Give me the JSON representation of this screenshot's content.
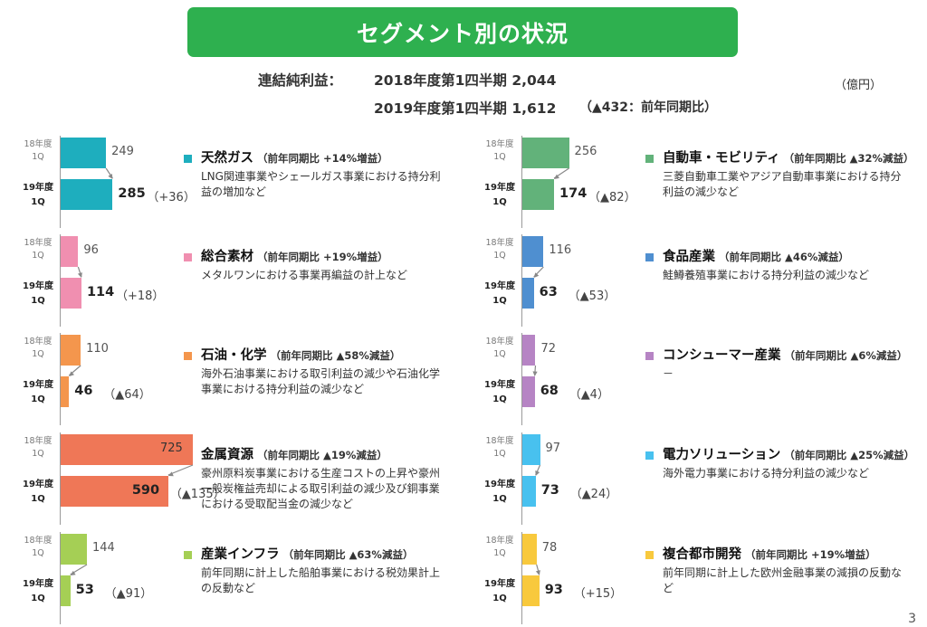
{
  "header": {
    "title": "セグメント別の状況"
  },
  "summary": {
    "label": "連結純利益：",
    "line1": "2018年度第1四半期 2,044",
    "line2": "2019年度第1四半期 1,612",
    "line2_note": "（▲432：前年同期比）",
    "unit": "（億円）"
  },
  "page_number": "3",
  "chart_data": [
    {
      "type": "bar",
      "color": "#1eaebe",
      "name": "天然ガス",
      "yoy": "（前年同期比 +14%増益）",
      "desc": "LNG関連事業やシェールガス事業における持分利益の増加など",
      "categories": [
        "18年度 1Q",
        "19年度 1Q"
      ],
      "values": [
        249,
        285
      ],
      "prev_label": "249",
      "curr_label": "285",
      "change": "（+36）"
    },
    {
      "type": "bar",
      "color": "#f08fb0",
      "name": "総合素材",
      "yoy": "（前年同期比 +19%増益）",
      "desc": "メタルワンにおける事業再編益の計上など",
      "categories": [
        "18年度 1Q",
        "19年度 1Q"
      ],
      "values": [
        96,
        114
      ],
      "prev_label": "96",
      "curr_label": "114",
      "change": "（+18）"
    },
    {
      "type": "bar",
      "color": "#f4964d",
      "name": "石油・化学",
      "yoy": "（前年同期比 ▲58%減益）",
      "desc": "海外石油事業における取引利益の減少や石油化学事業における持分利益の減少など",
      "categories": [
        "18年度 1Q",
        "19年度 1Q"
      ],
      "values": [
        110,
        46
      ],
      "prev_label": "110",
      "curr_label": "46",
      "change": "（▲64）"
    },
    {
      "type": "bar",
      "color": "#ef7757",
      "name": "金属資源",
      "yoy": "（前年同期比 ▲19%減益）",
      "desc": "豪州原料炭事業における生産コストの上昇や豪州一般炭権益売却による取引利益の減少及び銅事業における受取配当金の減少など",
      "categories": [
        "18年度 1Q",
        "19年度 1Q"
      ],
      "values": [
        725,
        590
      ],
      "prev_label": "725",
      "curr_label": "590",
      "change": "（▲135）",
      "prev_inside": true,
      "curr_inside": true
    },
    {
      "type": "bar",
      "color": "#a5cf55",
      "name": "産業インフラ",
      "yoy": "（前年同期比 ▲63%減益）",
      "desc": "前年同期に計上した船舶事業における税効果計上の反動など",
      "categories": [
        "18年度 1Q",
        "19年度 1Q"
      ],
      "values": [
        144,
        53
      ],
      "prev_label": "144",
      "curr_label": "53",
      "change": "（▲91）"
    },
    {
      "type": "bar",
      "color": "#62b27a",
      "name": "自動車・モビリティ",
      "yoy": "（前年同期比 ▲32%減益）",
      "desc": "三菱自動車工業やアジア自動車事業における持分利益の減少など",
      "categories": [
        "18年度 1Q",
        "19年度 1Q"
      ],
      "values": [
        256,
        174
      ],
      "prev_label": "256",
      "curr_label": "174",
      "change": "（▲82）"
    },
    {
      "type": "bar",
      "color": "#4f8fd0",
      "name": "食品産業",
      "yoy": "（前年同期比 ▲46%減益）",
      "desc": "鮭鱒養殖事業における持分利益の減少など",
      "categories": [
        "18年度 1Q",
        "19年度 1Q"
      ],
      "values": [
        116,
        63
      ],
      "prev_label": "116",
      "curr_label": "63",
      "change": "（▲53）"
    },
    {
      "type": "bar",
      "color": "#b684c4",
      "name": "コンシューマー産業",
      "yoy": "（前年同期比 ▲6%減益）",
      "desc": "－",
      "categories": [
        "18年度 1Q",
        "19年度 1Q"
      ],
      "values": [
        72,
        68
      ],
      "prev_label": "72",
      "curr_label": "68",
      "change": "（▲4）"
    },
    {
      "type": "bar",
      "color": "#48c1ef",
      "name": "電力ソリューション",
      "yoy": "（前年同期比 ▲25%減益）",
      "desc": "海外電力事業における持分利益の減少など",
      "categories": [
        "18年度 1Q",
        "19年度 1Q"
      ],
      "values": [
        97,
        73
      ],
      "prev_label": "97",
      "curr_label": "73",
      "change": "（▲24）"
    },
    {
      "type": "bar",
      "color": "#f8c93d",
      "name": "複合都市開発",
      "yoy": "（前年同期比 +19%増益）",
      "desc": "前年同期に計上した欧州金融事業の減損の反動など",
      "categories": [
        "18年度 1Q",
        "19年度 1Q"
      ],
      "values": [
        78,
        93
      ],
      "prev_label": "78",
      "curr_label": "93",
      "change": "（+15）"
    }
  ]
}
